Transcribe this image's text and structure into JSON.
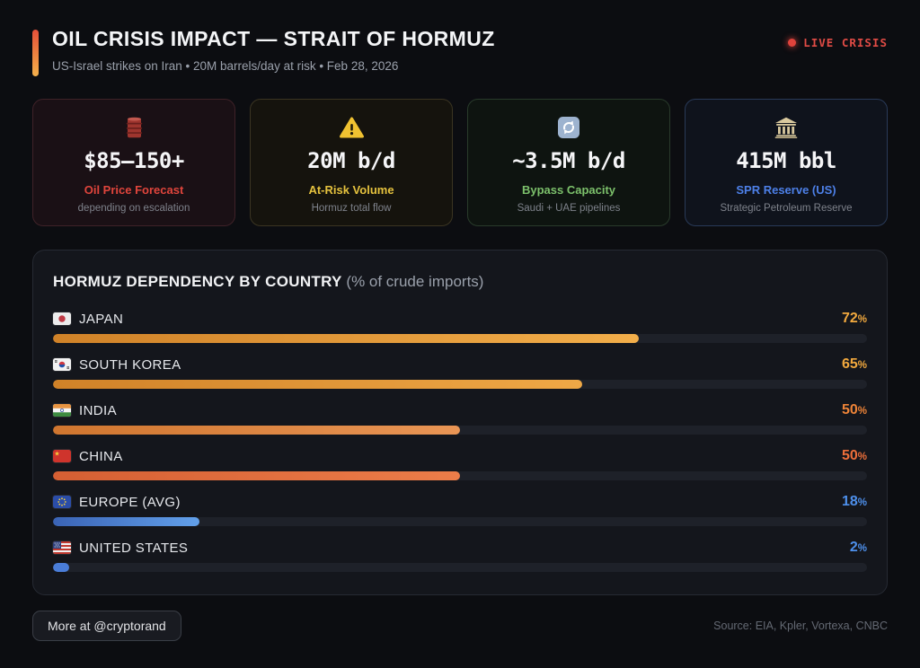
{
  "header": {
    "title": "OIL CRISIS IMPACT — STRAIT OF HORMUZ",
    "subtitle": "US-Israel strikes on Iran • 20M barrels/day at risk • Feb 28, 2026",
    "live_badge": "LIVE CRISIS",
    "live_color": "#e04b45",
    "accent_gradient": [
      "#e6503a",
      "#f4b14c"
    ]
  },
  "cards": [
    {
      "icon": "oil-barrel-icon",
      "value": "$85—150+",
      "label": "Oil Price Forecast",
      "sub": "depending on escalation",
      "accent": "#e0453c",
      "bg": "#1a1015",
      "border": "#3f2228"
    },
    {
      "icon": "warning-triangle-icon",
      "value": "20M b/d",
      "label": "At-Risk Volume",
      "sub": "Hormuz total flow",
      "accent": "#e5c23e",
      "bg": "#15130d",
      "border": "#3b3522"
    },
    {
      "icon": "refresh-arrows-icon",
      "value": "~3.5M b/d",
      "label": "Bypass Capacity",
      "sub": "Saudi + UAE pipelines",
      "accent": "#7cc06b",
      "bg": "#0e1410",
      "border": "#293b2b"
    },
    {
      "icon": "bank-building-icon",
      "value": "415M bbl",
      "label": "SPR Reserve (US)",
      "sub": "Strategic Petroleum Reserve",
      "accent": "#4d80e8",
      "bg": "#0f131c",
      "border": "#293a58"
    }
  ],
  "chart": {
    "title": "HORMUZ DEPENDENCY BY COUNTRY",
    "title_suffix": "(% of crude imports)",
    "unit": "%"
  },
  "chart_data": {
    "type": "bar",
    "title": "HORMUZ DEPENDENCY BY COUNTRY (% of crude imports)",
    "categories": [
      "JAPAN",
      "SOUTH KOREA",
      "INDIA",
      "CHINA",
      "EUROPE (AVG)",
      "UNITED STATES"
    ],
    "values": [
      72,
      65,
      50,
      50,
      18,
      2
    ],
    "unit": "%",
    "xlim": [
      0,
      100
    ],
    "orientation": "horizontal",
    "rows": [
      {
        "flag": "jp",
        "label": "JAPAN",
        "value": 72,
        "fill_start": "#d08228",
        "fill_end": "#f2ae4a",
        "value_color": "#f2a93e"
      },
      {
        "flag": "kr",
        "label": "SOUTH KOREA",
        "value": 65,
        "fill_start": "#d08228",
        "fill_end": "#efa846",
        "value_color": "#f2a93e"
      },
      {
        "flag": "in",
        "label": "INDIA",
        "value": 50,
        "fill_start": "#d0762f",
        "fill_end": "#e99555",
        "value_color": "#ee8438"
      },
      {
        "flag": "cn",
        "label": "CHINA",
        "value": 50,
        "fill_start": "#d55f33",
        "fill_end": "#ec7d49",
        "value_color": "#ee6f3a"
      },
      {
        "flag": "eu",
        "label": "EUROPE (AVG)",
        "value": 18,
        "fill_start": "#3a63b5",
        "fill_end": "#62a0ea",
        "value_color": "#4e90ec"
      },
      {
        "flag": "us",
        "label": "UNITED STATES",
        "value": 2,
        "fill_start": "#4a7dd8",
        "fill_end": "#4a7dd8",
        "value_color": "#4e90ec"
      }
    ]
  },
  "footer": {
    "button": "More at @cryptorand",
    "source": "Source: EIA, Kpler, Vortexa, CNBC"
  }
}
